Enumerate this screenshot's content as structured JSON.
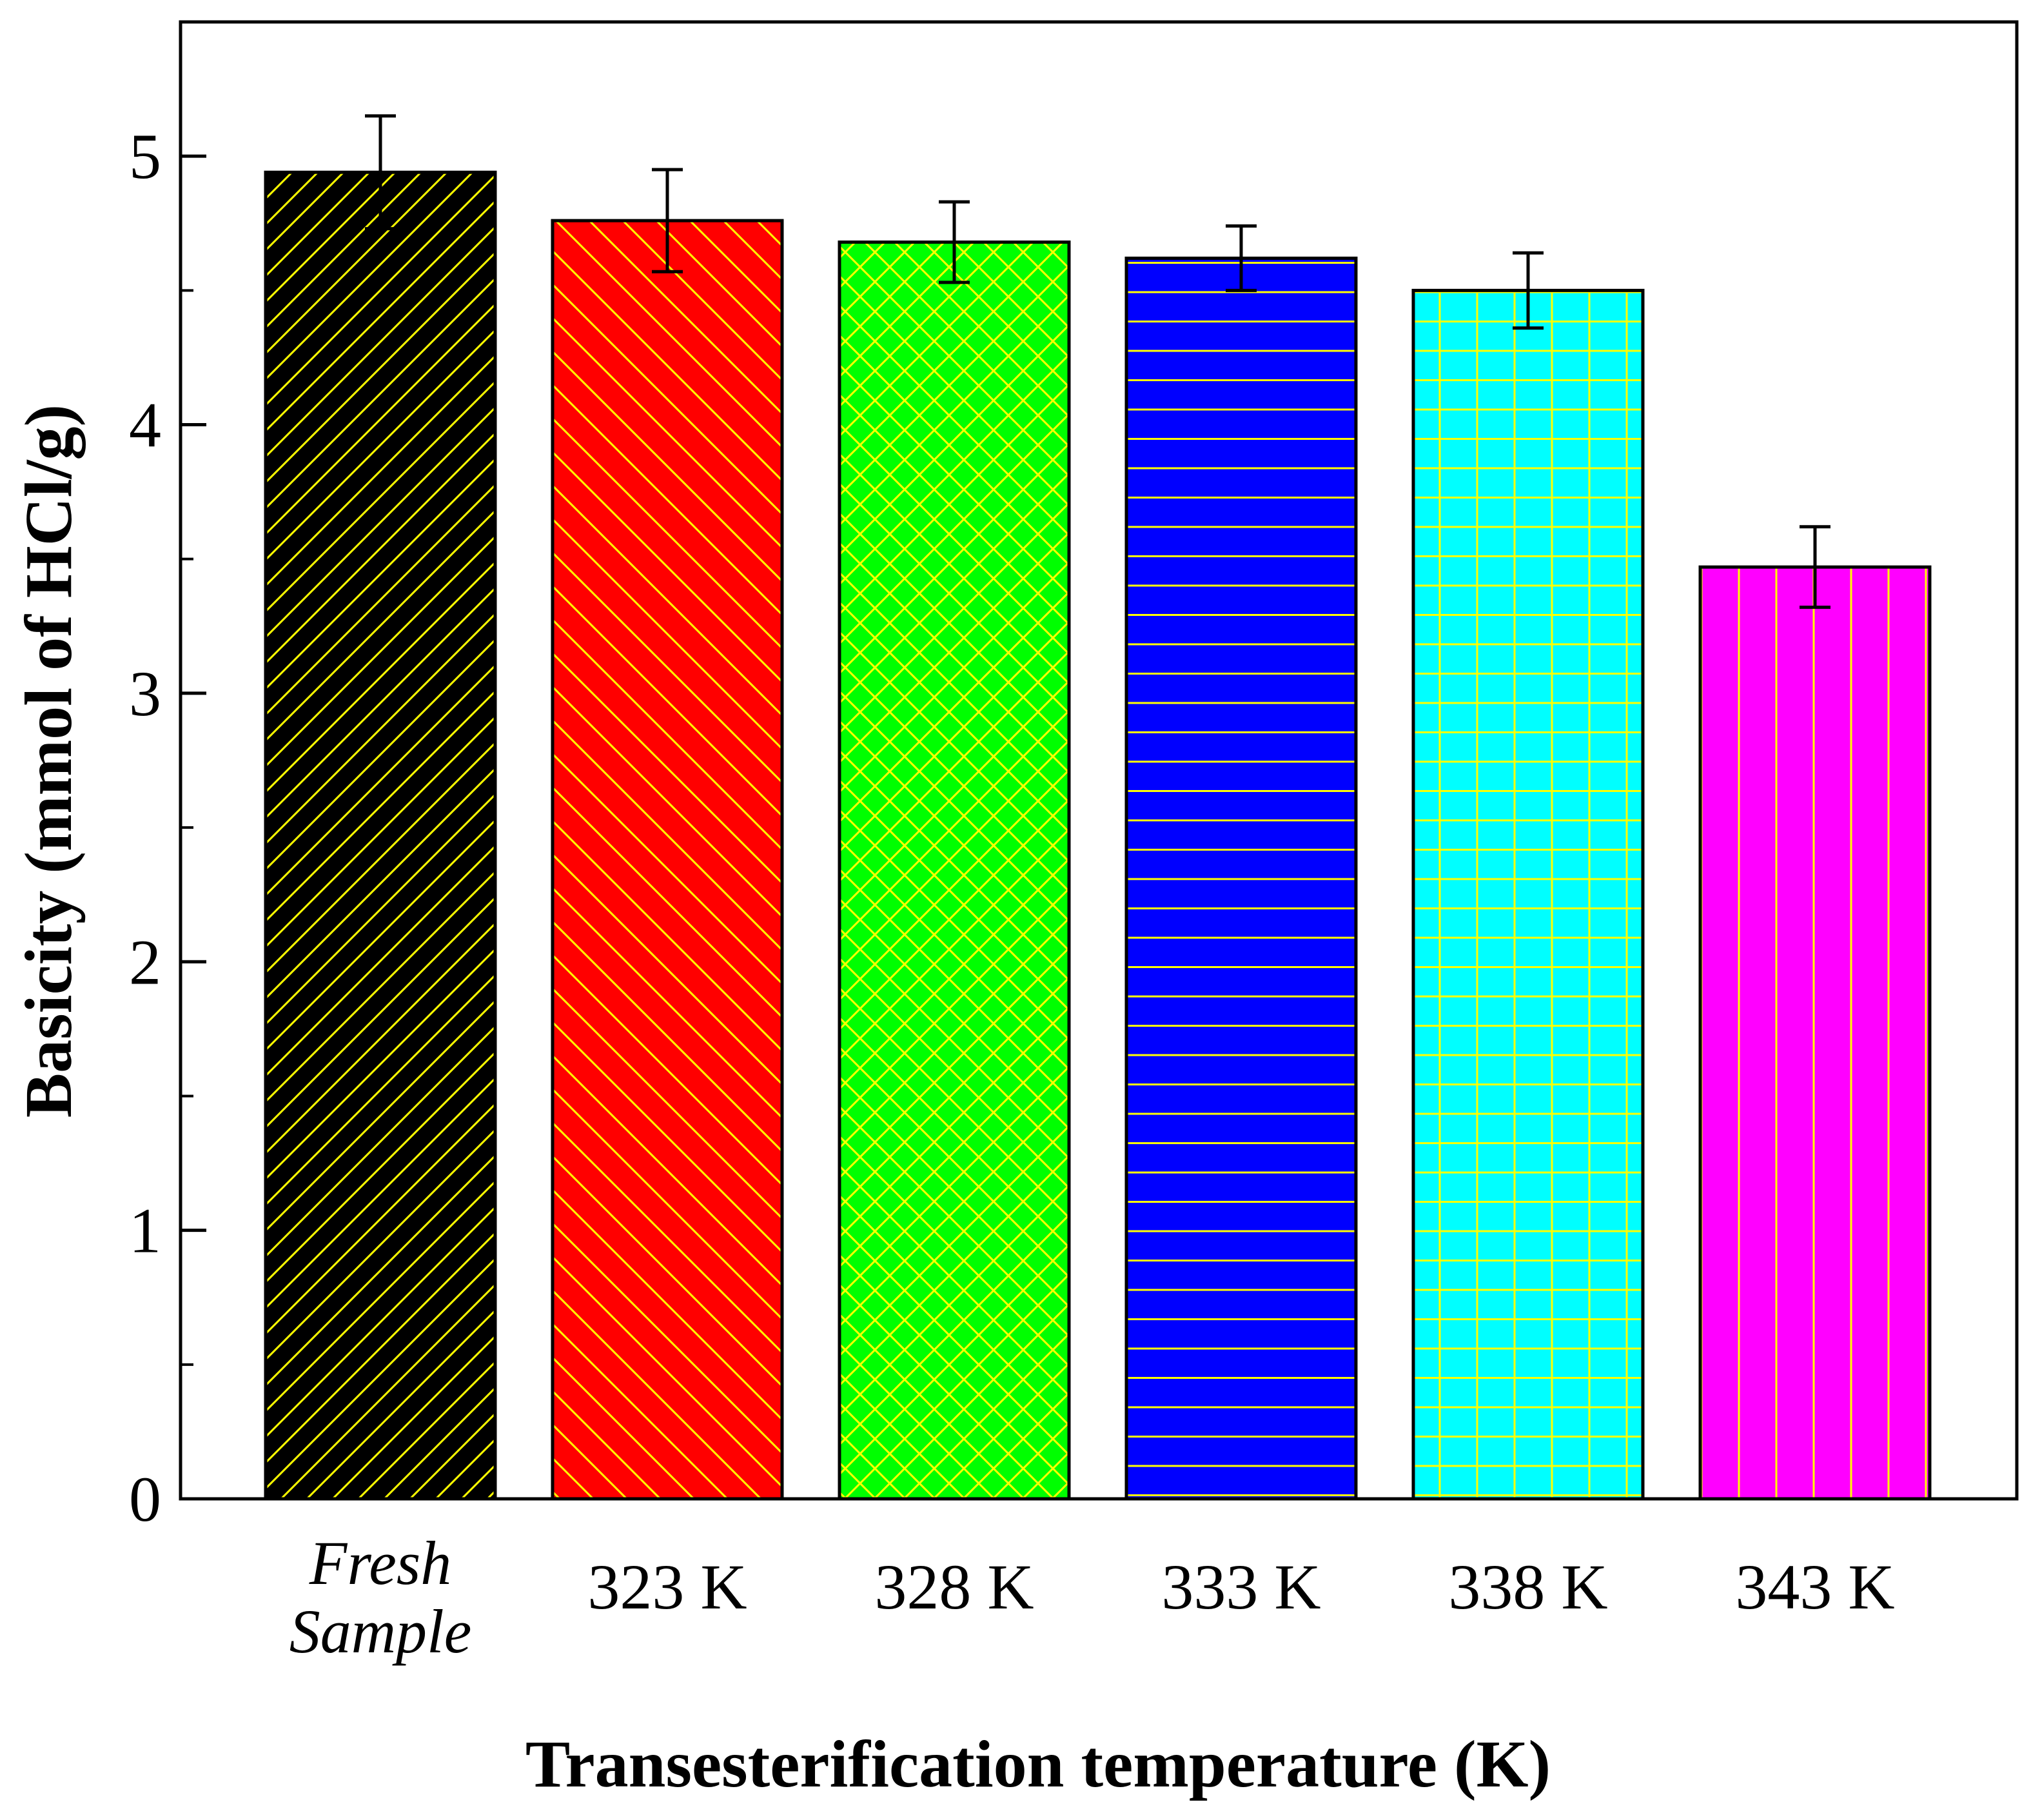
{
  "chart_data": {
    "type": "bar",
    "title": "",
    "xlabel": "Transesterification temperature (K)",
    "ylabel": "Basicity (mmol of HCl/g)",
    "ylim": [
      0,
      5.5
    ],
    "yticks": [
      0,
      1,
      2,
      3,
      4,
      5
    ],
    "ytick_labels": [
      "0",
      "1",
      "2",
      "3",
      "4",
      "5"
    ],
    "grid": false,
    "categories": [
      {
        "id": "fresh",
        "lines": [
          "Fresh",
          "Sample"
        ],
        "italic": true
      },
      {
        "id": "323",
        "lines": [
          "323 K"
        ],
        "italic": false
      },
      {
        "id": "328",
        "lines": [
          "328 K"
        ],
        "italic": false
      },
      {
        "id": "333",
        "lines": [
          "333 K"
        ],
        "italic": false
      },
      {
        "id": "338",
        "lines": [
          "338 K"
        ],
        "italic": false
      },
      {
        "id": "343",
        "lines": [
          "343 K"
        ],
        "italic": false
      }
    ],
    "values": [
      4.94,
      4.76,
      4.68,
      4.62,
      4.5,
      3.47
    ],
    "errors": [
      0.21,
      0.19,
      0.15,
      0.12,
      0.14,
      0.15
    ],
    "bar_colors": [
      "#000000",
      "#ff0000",
      "#00ff00",
      "#0000ff",
      "#00ffff",
      "#ff00ff"
    ],
    "hatch_color": "#ffff00",
    "hatch_patterns": [
      "diag-up",
      "diag-down",
      "cross-diag",
      "horizontal",
      "grid",
      "vertical"
    ]
  }
}
